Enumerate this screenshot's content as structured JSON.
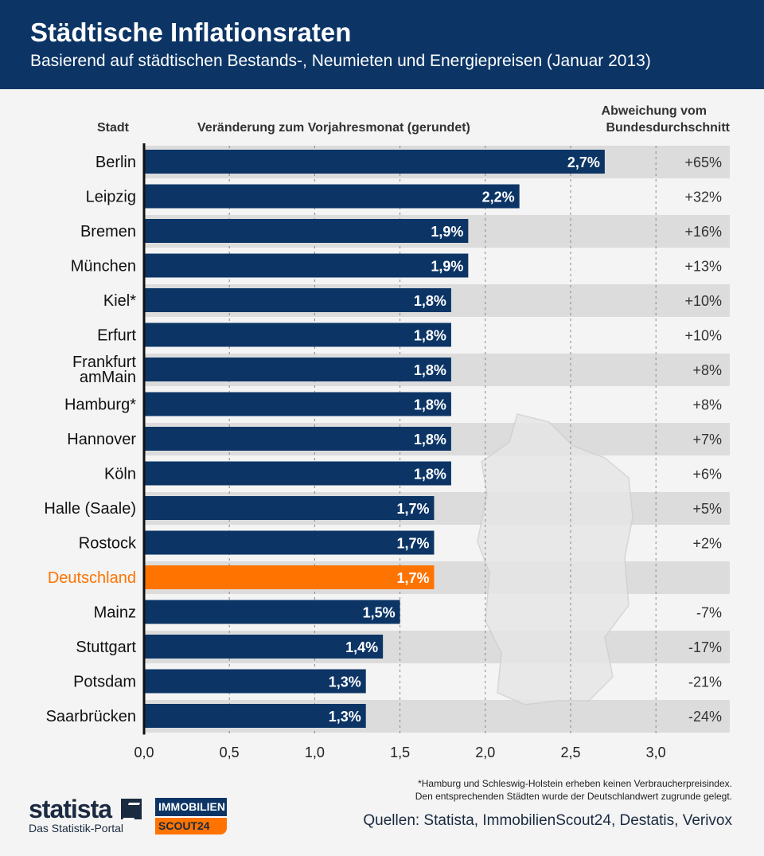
{
  "header": {
    "title": "Städtische Inflationsraten",
    "subtitle": "Basierend auf städtischen Bestands-, Neumieten und Energiepreisen (Januar 2013)"
  },
  "columns": {
    "city": "Stadt",
    "change": "Veränderung zum Vorjahresmonat (gerundet)",
    "deviation_line1": "Abweichung vom",
    "deviation_line2": "Bundesdurchschnitt"
  },
  "chart_data": {
    "type": "bar",
    "orientation": "horizontal",
    "categories": [
      "Berlin",
      "Leipzig",
      "Bremen",
      "München",
      "Kiel*",
      "Erfurt",
      "Frankfurt amMain",
      "Hamburg*",
      "Hannover",
      "Köln",
      "Halle (Saale)",
      "Rostock",
      "Deutschland",
      "Mainz",
      "Stuttgart",
      "Potsdam",
      "Saarbrücken"
    ],
    "values": [
      2.7,
      2.2,
      1.9,
      1.9,
      1.8,
      1.8,
      1.8,
      1.8,
      1.8,
      1.8,
      1.7,
      1.7,
      1.7,
      1.5,
      1.4,
      1.3,
      1.3
    ],
    "data_labels": [
      "2,7%",
      "2,2%",
      "1,9%",
      "1,9%",
      "1,8%",
      "1,8%",
      "1,8%",
      "1,8%",
      "1,8%",
      "1,8%",
      "1,7%",
      "1,7%",
      "1,7%",
      "1,5%",
      "1,4%",
      "1,3%",
      "1,3%"
    ],
    "deviation": [
      "+65%",
      "+32%",
      "+16%",
      "+13%",
      "+10%",
      "+10%",
      "+8%",
      "+8%",
      "+7%",
      "+6%",
      "+5%",
      "+2%",
      "",
      "-7%",
      "-17%",
      "-21%",
      "-24%"
    ],
    "highlight": "Deutschland",
    "xlim": [
      0,
      3.0
    ],
    "xticks": [
      "0,0",
      "0,5",
      "1,0",
      "1,5",
      "2,0",
      "2,5",
      "3,0"
    ],
    "grid": true,
    "colors": {
      "bar": "#0c3566",
      "highlight": "#ff7300",
      "band": "#dcdcdc"
    }
  },
  "footer": {
    "note_line1": "*Hamburg und Schleswig-Holstein erheben keinen Verbraucherpreisindex.",
    "note_line2": "Den entsprechenden Städten wurde der Deutschlandwert zugrunde gelegt.",
    "sources": "Quellen: Statista, ImmobilienScout24, Destatis, Verivox",
    "statista_logo": "statista",
    "statista_tagline": "Das Statistik-Portal",
    "is24_line1": "IMMOBILIEN",
    "is24_line2": "SCOUT24"
  }
}
